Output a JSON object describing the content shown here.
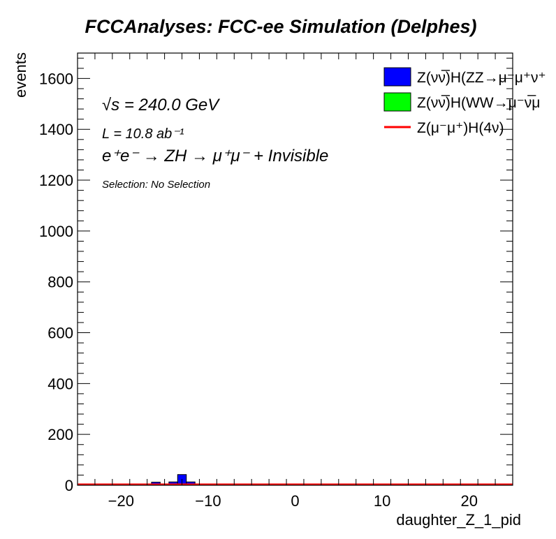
{
  "chart_data": {
    "type": "bar",
    "title": "FCCAnalyses: FCC-ee Simulation (Delphes)",
    "xlabel": "daughter_Z_1_pid",
    "ylabel": "events",
    "xlim": [
      -25,
      25
    ],
    "ylim": [
      0,
      1700
    ],
    "xticks": [
      -20,
      -10,
      0,
      10,
      20
    ],
    "xtick_labels": [
      "−20",
      "−10",
      "0",
      "10",
      "20"
    ],
    "yticks": [
      0,
      200,
      400,
      600,
      800,
      1000,
      1200,
      1400,
      1600
    ],
    "ytick_labels": [
      "0",
      "200",
      "400",
      "600",
      "800",
      "1000",
      "1200",
      "1400",
      "1600"
    ],
    "grid": false,
    "legend_position": "top-right",
    "annotations": {
      "energy": "√s = 240.0 GeV",
      "lumi": "L = 10.8 ab⁻¹",
      "process": "e⁺e⁻ → ZH → μ⁺μ⁻ + Invisible",
      "selection": "Selection: No Selection"
    },
    "series": [
      {
        "name": "Z(νν̅)H(ZZ→μ⁻μ⁺ν⁺",
        "kind": "stacked-hist",
        "color": "#0000ff",
        "bins": [
          {
            "x0": -16.5,
            "x1": -15.5,
            "value": 12
          },
          {
            "x0": -14.5,
            "x1": -13.5,
            "value": 13
          },
          {
            "x0": -13.5,
            "x1": -12.5,
            "value": 42
          },
          {
            "x0": -12.5,
            "x1": -11.5,
            "value": 13
          }
        ]
      },
      {
        "name": "Z(νν̅)H(WW→μ⁻ν̅μ",
        "kind": "stacked-hist",
        "color": "#00ff00",
        "bins": []
      },
      {
        "name": "Z(μ⁻μ⁺)H(4ν)",
        "kind": "line",
        "color": "#ff0000",
        "bins": [
          {
            "x0": -25,
            "x1": 25,
            "value": 0
          }
        ]
      }
    ]
  }
}
